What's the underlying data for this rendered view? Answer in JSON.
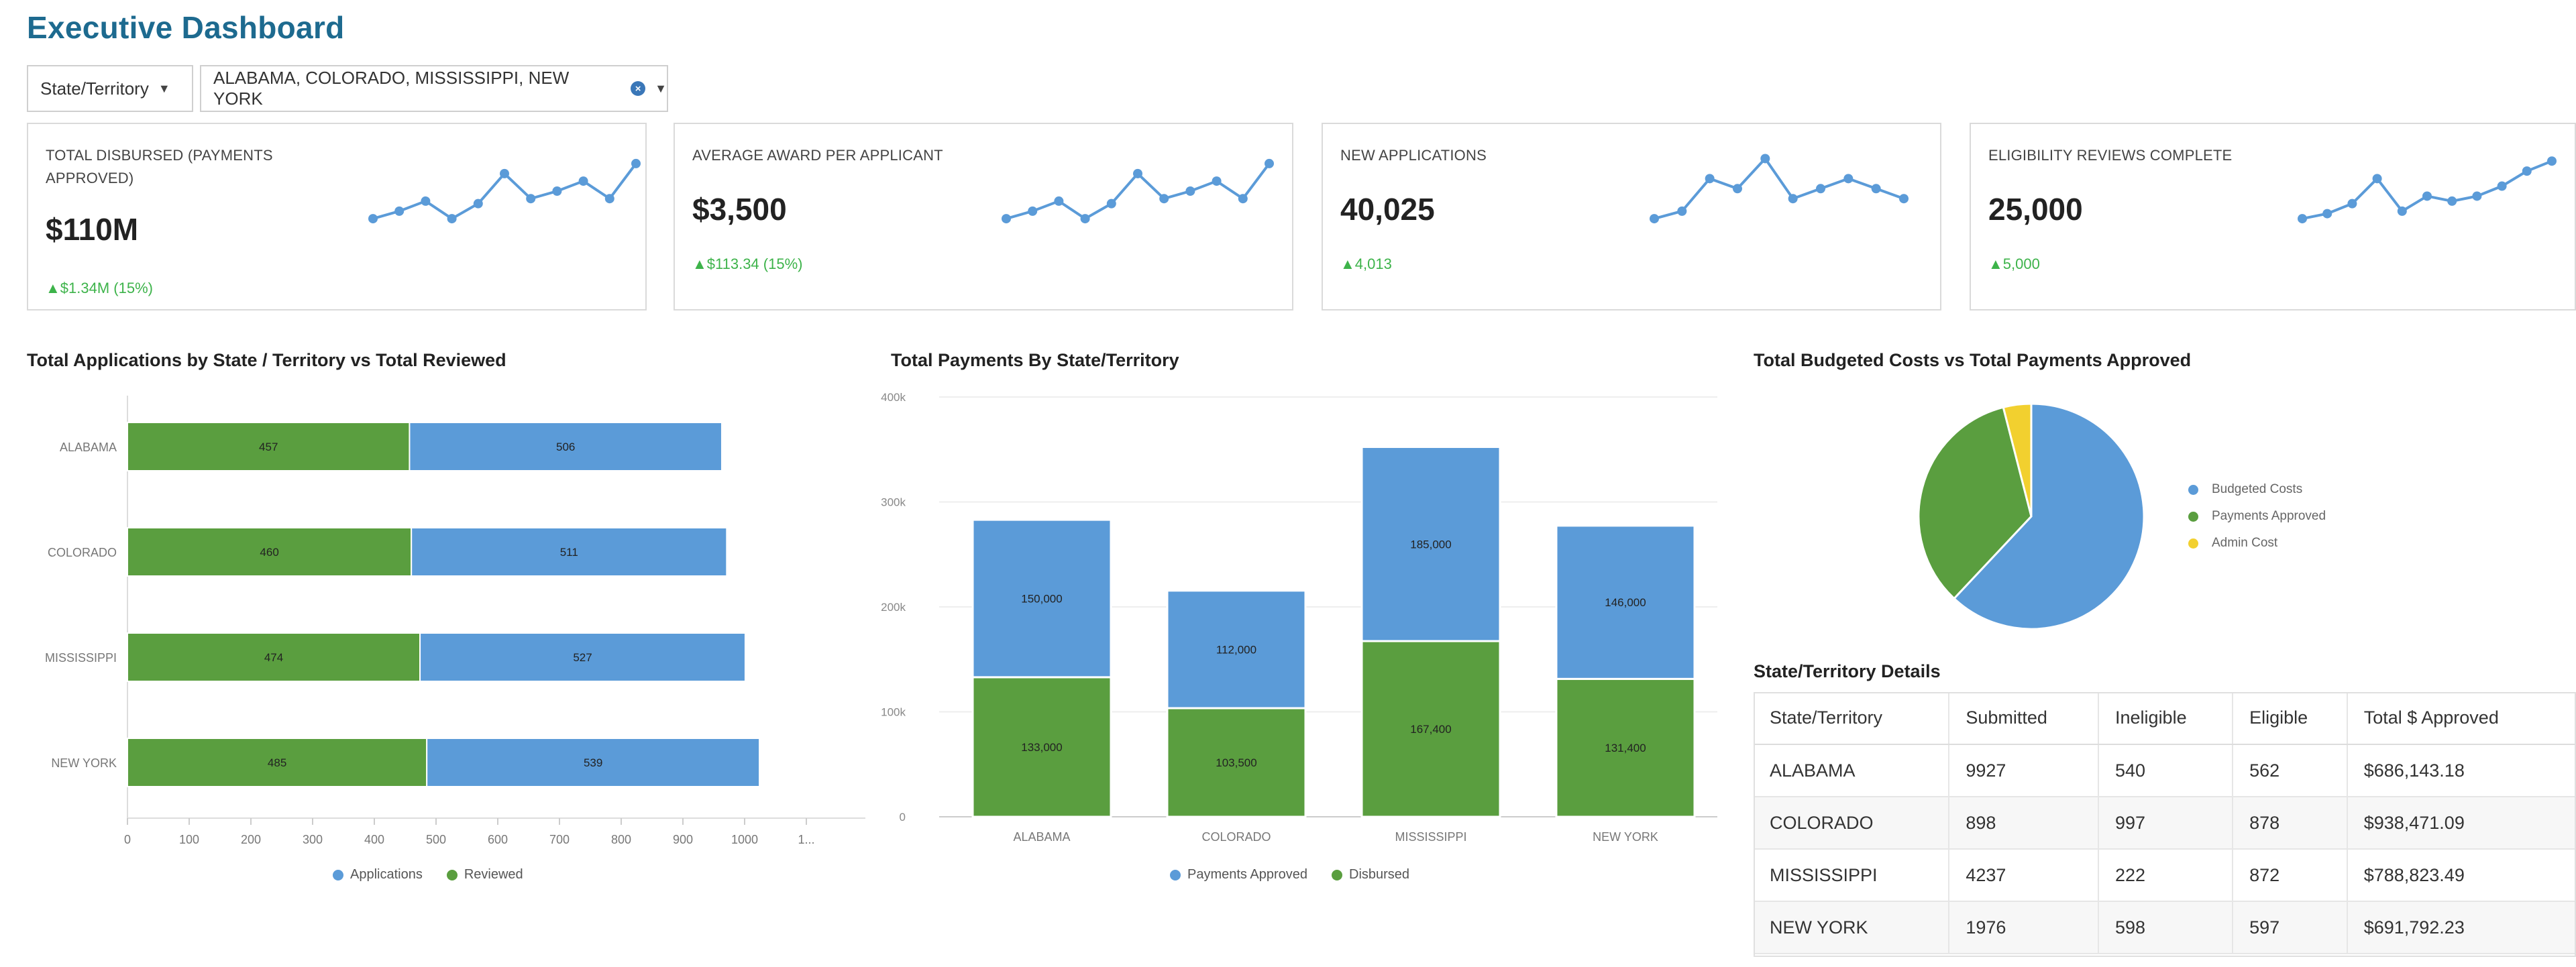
{
  "title": "Executive Dashboard",
  "filters": {
    "field_label": "State/Territory",
    "selected_value": "ALABAMA, COLORADO, MISSISSIPPI, NEW YORK"
  },
  "kpis": [
    {
      "label": "TOTAL DISBURSED (PAYMENTS APPROVED)",
      "value": "$110M",
      "delta": "▲$1.34M (15%)",
      "sparkline": [
        3.0,
        3.3,
        3.7,
        3.0,
        3.6,
        4.8,
        3.8,
        4.1,
        4.5,
        3.8,
        5.2
      ]
    },
    {
      "label": "AVERAGE AWARD PER APPLICANT",
      "value": "$3,500",
      "delta": "▲$113.34 (15%)",
      "sparkline": [
        3.0,
        3.3,
        3.7,
        3.0,
        3.6,
        4.8,
        3.8,
        4.1,
        4.5,
        3.8,
        5.2
      ]
    },
    {
      "label": "NEW APPLICATIONS",
      "value": "40,025",
      "delta": "▲4,013",
      "sparkline": [
        3.0,
        3.3,
        4.6,
        4.2,
        5.4,
        3.8,
        4.2,
        4.6,
        4.2,
        3.8
      ]
    },
    {
      "label": "ELIGIBILITY REVIEWS COMPLETE",
      "value": "25,000",
      "delta": "▲5,000",
      "sparkline": [
        3.0,
        3.2,
        3.6,
        4.6,
        3.3,
        3.9,
        3.7,
        3.9,
        4.3,
        4.9,
        5.3
      ]
    }
  ],
  "chart_titles": {
    "applications": "Total Applications by State / Territory vs Total Reviewed",
    "payments": "Total Payments By State/Territory",
    "budget": "Total Budgeted Costs vs Total Payments Approved"
  },
  "chart_data": [
    {
      "type": "bar",
      "orientation": "horizontal",
      "stacked": true,
      "title": "Total Applications by State / Territory vs Total Reviewed",
      "categories": [
        "ALABAMA",
        "COLORADO",
        "MISSISSIPPI",
        "NEW YORK"
      ],
      "series": [
        {
          "name": "Reviewed",
          "values": [
            457,
            460,
            474,
            485
          ],
          "labels": [
            "457",
            "460",
            "474",
            "485"
          ],
          "color": "#5a9e3f"
        },
        {
          "name": "Applications",
          "values": [
            506,
            511,
            527,
            539
          ],
          "labels": [
            "506",
            "511",
            "527",
            "539"
          ],
          "color": "#5b9bd8"
        }
      ],
      "legend": [
        {
          "name": "Applications",
          "color": "#5b9bd8"
        },
        {
          "name": "Reviewed",
          "color": "#5a9e3f"
        }
      ],
      "xticks": [
        "0",
        "100",
        "200",
        "300",
        "400",
        "500",
        "600",
        "700",
        "800",
        "900",
        "1000",
        "1..."
      ],
      "xlim": [
        0,
        1100
      ],
      "legend_position": "bottom"
    },
    {
      "type": "bar",
      "orientation": "vertical",
      "stacked": true,
      "title": "Total Payments By State/Territory",
      "categories": [
        "ALABAMA",
        "COLORADO",
        "MISSISSIPPI",
        "NEW YORK"
      ],
      "series": [
        {
          "name": "Disbursed",
          "values": [
            133000,
            103500,
            167400,
            131400
          ],
          "labels": [
            "133,000",
            "103,500",
            "167,400",
            "131,400"
          ],
          "color": "#5a9e3f"
        },
        {
          "name": "Payments Approved",
          "values": [
            150000,
            112000,
            185000,
            146000
          ],
          "labels": [
            "150,000",
            "112,000",
            "185,000",
            "146,000"
          ],
          "color": "#5b9bd8"
        }
      ],
      "legend": [
        {
          "name": "Payments Approved",
          "color": "#5b9bd8"
        },
        {
          "name": "Disbursed",
          "color": "#5a9e3f"
        }
      ],
      "yticks": [
        "0",
        "100k",
        "200k",
        "300k",
        "400k"
      ],
      "ylim": [
        0,
        400000
      ],
      "legend_position": "bottom"
    },
    {
      "type": "pie",
      "title": "Total Budgeted Costs vs Total Payments Approved",
      "slices": [
        {
          "name": "Budgeted Costs",
          "value": 62,
          "color": "#5b9bd8"
        },
        {
          "name": "Payments Approved",
          "value": 34,
          "color": "#5a9e3f"
        },
        {
          "name": "Admin Cost",
          "value": 4,
          "color": "#f2d02f"
        }
      ],
      "legend_position": "right"
    },
    {
      "type": "table",
      "title": "State/Territory Details",
      "columns": [
        "State/Territory",
        "Submitted",
        "Ineligible",
        "Eligible",
        "Total $ Approved"
      ],
      "rows": [
        [
          "ALABAMA",
          "9927",
          "540",
          "562",
          "$686,143.18"
        ],
        [
          "COLORADO",
          "898",
          "997",
          "878",
          "$938,471.09"
        ],
        [
          "MISSISSIPPI",
          "4237",
          "222",
          "872",
          "$788,823.49"
        ],
        [
          "NEW YORK",
          "1976",
          "598",
          "597",
          "$691,792.23"
        ]
      ]
    }
  ]
}
